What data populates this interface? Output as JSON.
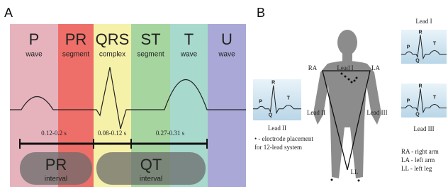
{
  "panel_a": {
    "label": "A",
    "segments": [
      {
        "name": "P",
        "sub": "wave",
        "color": "#e6b3bd"
      },
      {
        "name": "PR",
        "sub": "segment",
        "color": "#ee6e69"
      },
      {
        "name": "QRS",
        "sub": "complex",
        "color": "#f6f1a9"
      },
      {
        "name": "ST",
        "sub": "segment",
        "color": "#a6d59f"
      },
      {
        "name": "T",
        "sub": "wave",
        "color": "#a7d9cd"
      },
      {
        "name": "U",
        "sub": "wave",
        "color": "#a9a8d7"
      }
    ],
    "durations": [
      "0.12-0.2 s",
      "0.08-0.12 s",
      "0.27-0.31 s"
    ],
    "intervals": [
      {
        "name": "PR",
        "sub": "interval"
      },
      {
        "name": "QT",
        "sub": "interval"
      }
    ]
  },
  "panel_b": {
    "label": "B",
    "electrodes": [
      "RA",
      "LA",
      "LL"
    ],
    "lead_labels": [
      "Lead I",
      "Lead II",
      "Lead III"
    ],
    "traces": [
      {
        "title": "Lead I",
        "waves": [
          "P",
          "Q",
          "R",
          "T"
        ]
      },
      {
        "title": "Lead II",
        "waves": [
          "P",
          "Q",
          "R",
          "T"
        ]
      },
      {
        "title": "Lead III",
        "waves": [
          "P",
          "Q",
          "R",
          "T"
        ]
      }
    ],
    "note": [
      "• - electrode placement",
      "for 12-lead system"
    ],
    "legend": [
      "RA - right arm",
      "LA - left arm",
      "LL - left leg"
    ]
  }
}
